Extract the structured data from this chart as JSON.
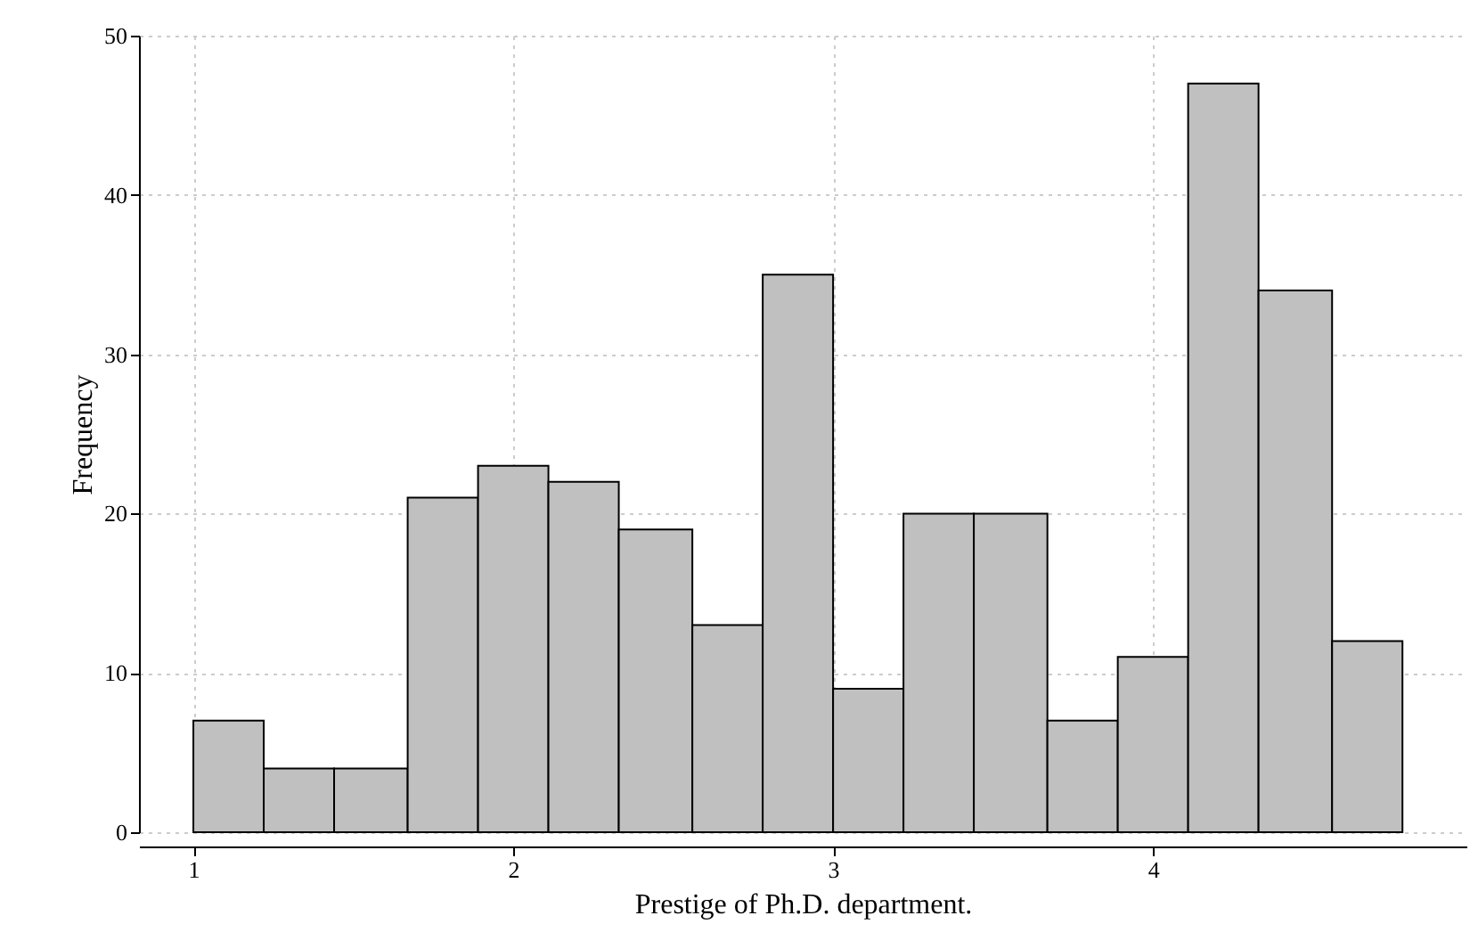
{
  "chart_data": {
    "type": "histogram",
    "xlabel": "Prestige of Ph.D. department.",
    "ylabel": "Frequency",
    "bins": [
      1,
      1.22,
      1.44,
      1.67,
      1.89,
      2.11,
      2.33,
      2.56,
      2.78,
      3,
      3.22,
      3.44,
      3.67,
      3.89,
      4.11,
      4.33,
      4.56,
      4.78
    ],
    "values": [
      7,
      4,
      4,
      21,
      23,
      22,
      19,
      13,
      35,
      9,
      20,
      20,
      7,
      11,
      47,
      34,
      12
    ],
    "color": "#c0c0c0",
    "xlim": [
      0.83,
      4.98
    ],
    "xticks": [
      1,
      2,
      3,
      4
    ],
    "ylim": [
      0,
      50
    ],
    "yticks": [
      0,
      10,
      20,
      30,
      40,
      50
    ],
    "grid": true
  }
}
